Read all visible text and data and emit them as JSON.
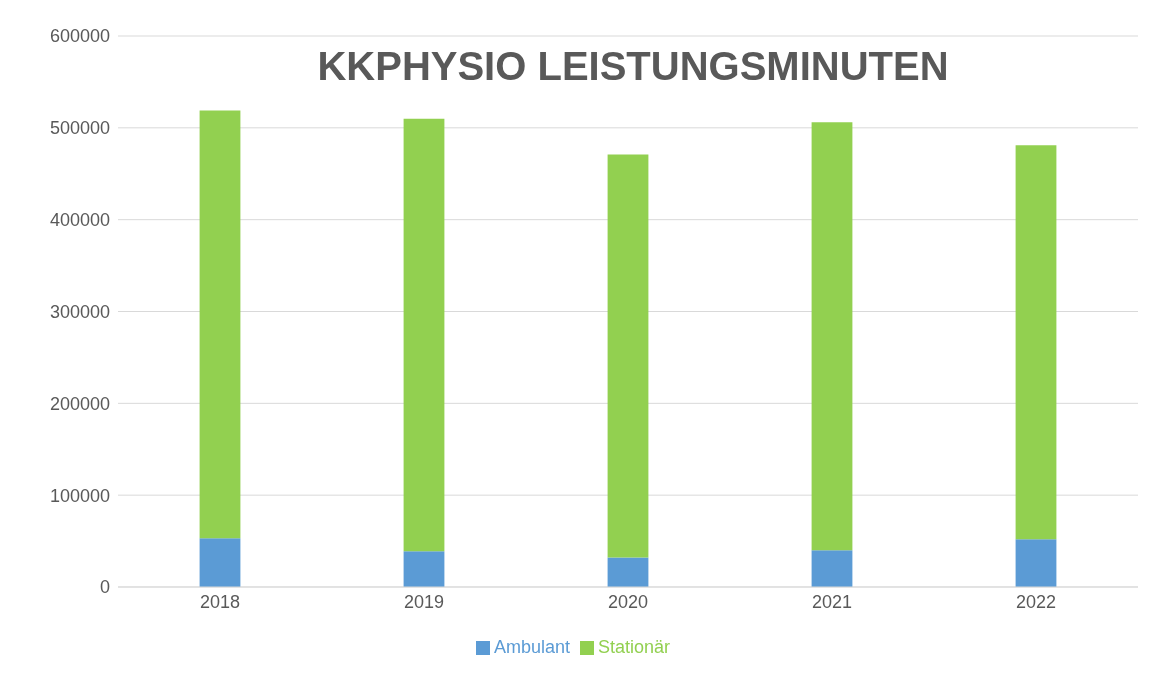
{
  "chart_data": {
    "type": "bar",
    "title": "KKPHYSIO LEISTUNGSMINUTEN",
    "categories": [
      "2018",
      "2019",
      "2020",
      "2021",
      "2022"
    ],
    "stacked": true,
    "series": [
      {
        "name": "Ambulant",
        "color": "#5b9bd5",
        "values": [
          53000,
          39000,
          32000,
          40000,
          52000
        ]
      },
      {
        "name": "Stationär",
        "color": "#92d050",
        "values": [
          466000,
          471000,
          439000,
          466000,
          429000
        ]
      }
    ],
    "ylim": [
      0,
      600000
    ],
    "yticks": [
      0,
      100000,
      200000,
      300000,
      400000,
      500000,
      600000
    ],
    "grid": "y",
    "legend": "bottom"
  }
}
